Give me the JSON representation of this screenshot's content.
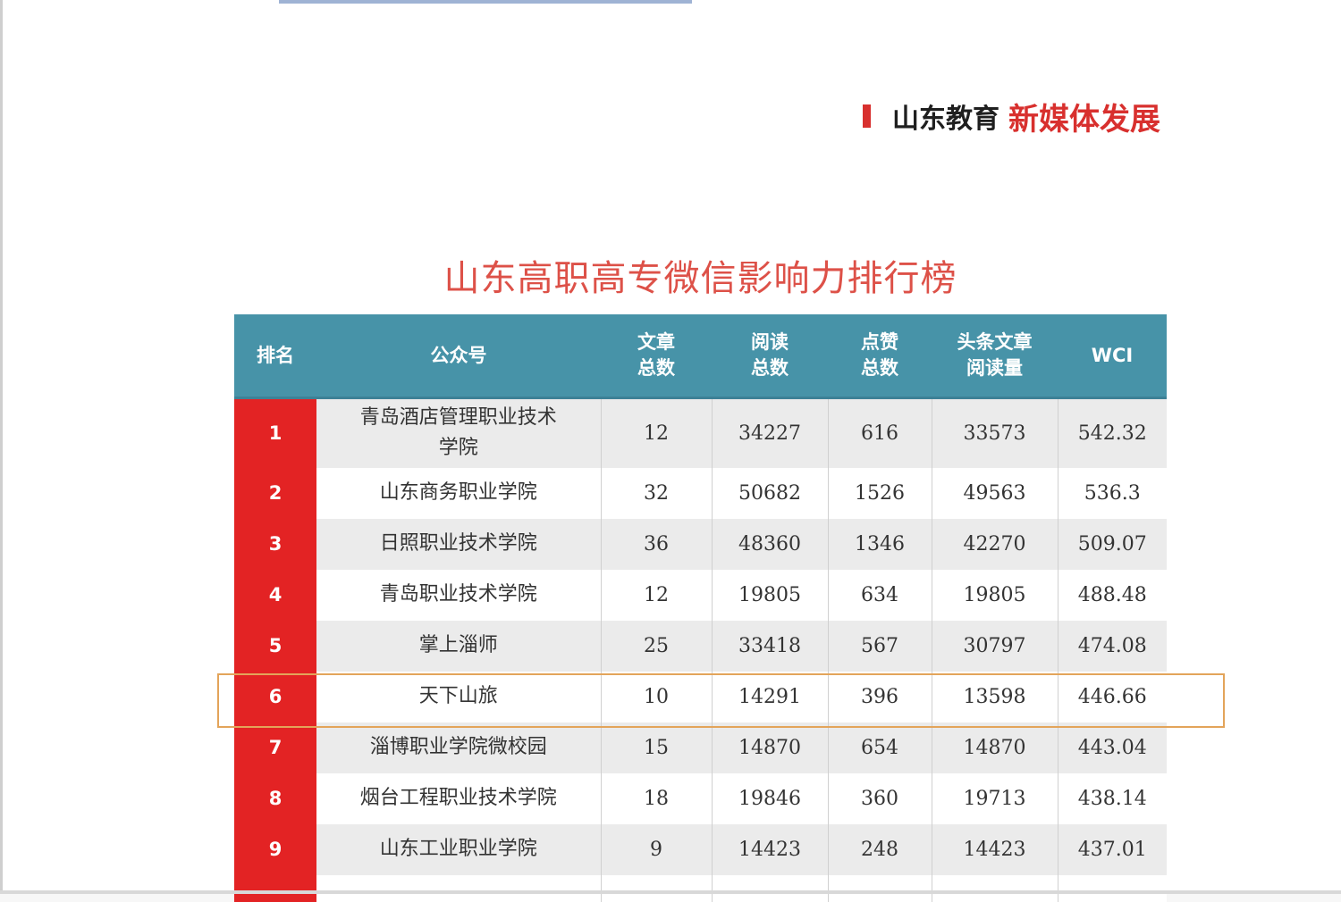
{
  "brand": {
    "part_dark": "山东教育",
    "part_red": "新媒体发展"
  },
  "ranking": {
    "title": "山东高职高专微信影响力排行榜",
    "headers": {
      "rank": "排名",
      "account": "公众号",
      "articles_l1": "文章",
      "articles_l2": "总数",
      "reads_l1": "阅读",
      "reads_l2": "总数",
      "likes_l1": "点赞",
      "likes_l2": "总数",
      "headline_l1": "头条文章",
      "headline_l2": "阅读量",
      "wci": "WCI"
    },
    "rows": [
      {
        "rank": "1",
        "name_l1": "青岛酒店管理职业技术",
        "name_l2": "学院",
        "articles": "12",
        "reads": "34227",
        "likes": "616",
        "headline_reads": "33573",
        "wci": "542.32"
      },
      {
        "rank": "2",
        "name_l1": "山东商务职业学院",
        "name_l2": "",
        "articles": "32",
        "reads": "50682",
        "likes": "1526",
        "headline_reads": "49563",
        "wci": "536.3"
      },
      {
        "rank": "3",
        "name_l1": "日照职业技术学院",
        "name_l2": "",
        "articles": "36",
        "reads": "48360",
        "likes": "1346",
        "headline_reads": "42270",
        "wci": "509.07"
      },
      {
        "rank": "4",
        "name_l1": "青岛职业技术学院",
        "name_l2": "",
        "articles": "12",
        "reads": "19805",
        "likes": "634",
        "headline_reads": "19805",
        "wci": "488.48"
      },
      {
        "rank": "5",
        "name_l1": "掌上淄师",
        "name_l2": "",
        "articles": "25",
        "reads": "33418",
        "likes": "567",
        "headline_reads": "30797",
        "wci": "474.08"
      },
      {
        "rank": "6",
        "name_l1": "天下山旅",
        "name_l2": "",
        "articles": "10",
        "reads": "14291",
        "likes": "396",
        "headline_reads": "13598",
        "wci": "446.66"
      },
      {
        "rank": "7",
        "name_l1": "淄博职业学院微校园",
        "name_l2": "",
        "articles": "15",
        "reads": "14870",
        "likes": "654",
        "headline_reads": "14870",
        "wci": "443.04"
      },
      {
        "rank": "8",
        "name_l1": "烟台工程职业技术学院",
        "name_l2": "",
        "articles": "18",
        "reads": "19846",
        "likes": "360",
        "headline_reads": "19713",
        "wci": "438.14"
      },
      {
        "rank": "9",
        "name_l1": "山东工业职业学院",
        "name_l2": "",
        "articles": "9",
        "reads": "14423",
        "likes": "248",
        "headline_reads": "14423",
        "wci": "437.01"
      }
    ],
    "highlighted_rank": "6"
  }
}
